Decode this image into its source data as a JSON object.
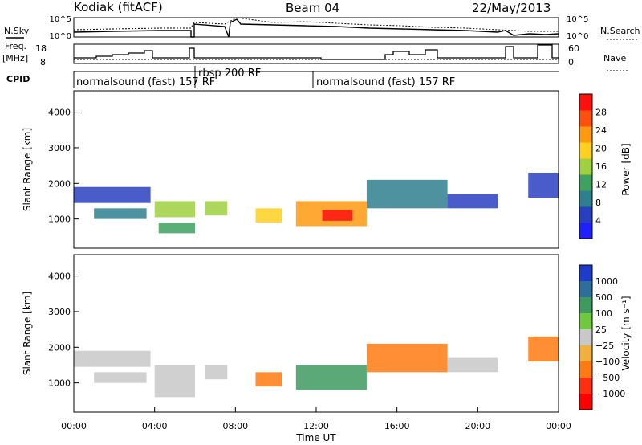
{
  "header": {
    "station": "Kodiak (fitACF)",
    "beam": "Beam 04",
    "date": "22/May/2013"
  },
  "labels": {
    "nsky": "N.Sky",
    "nsearch": "N.Search",
    "freq": "Freq.",
    "freq_unit": "[MHz]",
    "nave": "Nave",
    "cpid": "CPID",
    "time_axis": "Time UT",
    "slant_range": "Slant Range [km]"
  },
  "noise_panel": {
    "ticks_left": [
      "10^5",
      "10^0"
    ],
    "ticks_right": [
      "10^5",
      "10^0"
    ]
  },
  "freq_panel": {
    "ticks_left": [
      "18",
      "8"
    ],
    "ticks_right": [
      "60",
      "0"
    ]
  },
  "cpid_panel": {
    "segments": [
      {
        "start": 0,
        "label": "normalsound (fast) 157 RF"
      },
      {
        "start": 6.1,
        "label": "rbsp 200 RF"
      },
      {
        "start": 12.0,
        "label": "normalsound (fast) 157 RF"
      }
    ]
  },
  "power_colorbar": {
    "title": "Power [dB]",
    "ticks": [
      "4",
      "8",
      "12",
      "16",
      "20",
      "24",
      "28"
    ],
    "colors": [
      "#1f1fff",
      "#2a3fbf",
      "#2f7f8f",
      "#3fa060",
      "#9fd040",
      "#ffd020",
      "#ff9a10",
      "#ff5010",
      "#ff1010"
    ]
  },
  "velocity_colorbar": {
    "title": "Velocity [m s⁻¹]",
    "ticks": [
      "1000",
      "500",
      "100",
      "25",
      "−25",
      "−100",
      "−500",
      "−1000"
    ],
    "colors": [
      "#1e3cc8",
      "#2e6e9a",
      "#3f9a60",
      "#70c840",
      "#c8c8c8",
      "#f0b040",
      "#ff7a10",
      "#ff3010",
      "#ff0000"
    ]
  },
  "chart_data": [
    {
      "type": "heatmap",
      "name": "power",
      "xlabel": "Time UT",
      "ylabel": "Slant Range [km]",
      "xlim": [
        0,
        24
      ],
      "ylim": [
        180,
        4600
      ],
      "x_ticks": [
        "00:00",
        "04:00",
        "08:00",
        "12:00",
        "16:00",
        "20:00",
        "00:00"
      ],
      "y_ticks": [
        1000,
        2000,
        3000,
        4000
      ],
      "bands": [
        {
          "t0": 0.0,
          "t1": 3.8,
          "r0": 1450,
          "r1": 1900,
          "level": 1
        },
        {
          "t0": 1.0,
          "t1": 3.6,
          "r0": 1000,
          "r1": 1300,
          "level": 2
        },
        {
          "t0": 4.0,
          "t1": 6.0,
          "r0": 1050,
          "r1": 1500,
          "level": 4
        },
        {
          "t0": 4.2,
          "t1": 6.0,
          "r0": 600,
          "r1": 900,
          "level": 3
        },
        {
          "t0": 6.5,
          "t1": 7.6,
          "r0": 1100,
          "r1": 1500,
          "level": 4
        },
        {
          "t0": 9.0,
          "t1": 10.3,
          "r0": 900,
          "r1": 1300,
          "level": 5
        },
        {
          "t0": 11.0,
          "t1": 14.5,
          "r0": 800,
          "r1": 1500,
          "level": 6
        },
        {
          "t0": 12.3,
          "t1": 13.8,
          "r0": 950,
          "r1": 1250,
          "level": 8
        },
        {
          "t0": 14.5,
          "t1": 18.5,
          "r0": 1300,
          "r1": 2100,
          "level": 2
        },
        {
          "t0": 18.5,
          "t1": 21.0,
          "r0": 1300,
          "r1": 1700,
          "level": 1
        },
        {
          "t0": 22.5,
          "t1": 24.0,
          "r0": 1600,
          "r1": 2300,
          "level": 1
        }
      ]
    },
    {
      "type": "heatmap",
      "name": "velocity",
      "xlabel": "Time UT",
      "ylabel": "Slant Range [km]",
      "xlim": [
        0,
        24
      ],
      "ylim": [
        180,
        4600
      ],
      "x_ticks": [
        "00:00",
        "04:00",
        "08:00",
        "12:00",
        "16:00",
        "20:00",
        "00:00"
      ],
      "y_ticks": [
        1000,
        2000,
        3000,
        4000
      ],
      "bands": [
        {
          "t0": 0.0,
          "t1": 3.8,
          "r0": 1450,
          "r1": 1900,
          "level": 4
        },
        {
          "t0": 1.0,
          "t1": 3.6,
          "r0": 1000,
          "r1": 1300,
          "level": 4
        },
        {
          "t0": 4.0,
          "t1": 6.0,
          "r0": 600,
          "r1": 1500,
          "level": 4
        },
        {
          "t0": 6.5,
          "t1": 7.6,
          "r0": 1100,
          "r1": 1500,
          "level": 4
        },
        {
          "t0": 9.0,
          "t1": 10.3,
          "r0": 900,
          "r1": 1300,
          "level": 6
        },
        {
          "t0": 11.0,
          "t1": 14.5,
          "r0": 800,
          "r1": 1500,
          "level": 2
        },
        {
          "t0": 14.5,
          "t1": 18.5,
          "r0": 1300,
          "r1": 2100,
          "level": 6
        },
        {
          "t0": 18.5,
          "t1": 21.0,
          "r0": 1300,
          "r1": 1700,
          "level": 4
        },
        {
          "t0": 22.5,
          "t1": 24.0,
          "r0": 1600,
          "r1": 2300,
          "level": 6
        }
      ]
    }
  ]
}
